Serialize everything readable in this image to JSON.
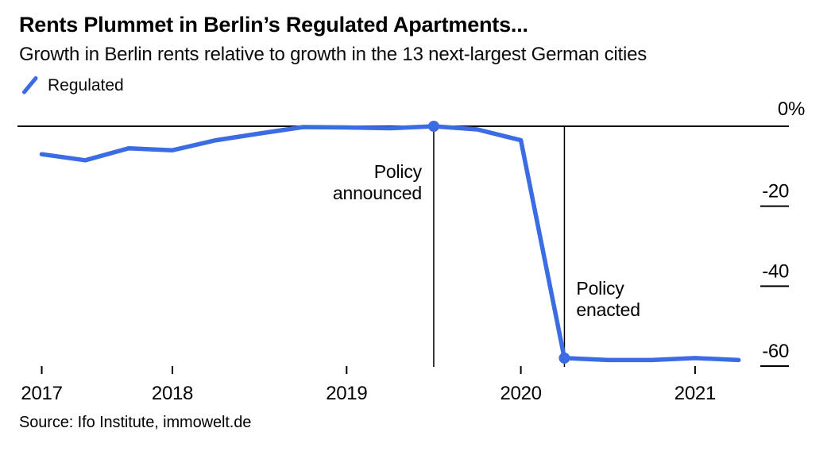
{
  "header": {
    "title": "Rents Plummet in Berlin’s Regulated Apartments...",
    "subtitle": "Growth in Berlin rents relative to growth in the 13 next-largest German cities"
  },
  "legend": {
    "items": [
      {
        "label": "Regulated",
        "color": "#3B6CE3"
      }
    ]
  },
  "footer": {
    "source": "Source: Ifo Institute, immowelt.de"
  },
  "chart_data": {
    "type": "line",
    "title": "Rents Plummet in Berlin’s Regulated Apartments...",
    "subtitle": "Growth in Berlin rents relative to growth in the 13 next-largest German cities",
    "xlabel": "",
    "ylabel": "",
    "grid": "zero-line-only",
    "legend_position": "top-left",
    "axis_color": "#000000",
    "line_color": "#3B6CE3",
    "xlim": [
      2017.25,
      2021.25
    ],
    "ylim": [
      -62,
      2
    ],
    "series": [
      {
        "name": "Regulated",
        "color": "#3B6CE3",
        "x": [
          2017.25,
          2017.5,
          2017.75,
          2018.0,
          2018.25,
          2018.5,
          2018.75,
          2019.0,
          2019.25,
          2019.5,
          2019.75,
          2020.0,
          2020.25,
          2020.5,
          2020.75,
          2021.0,
          2021.25
        ],
        "values": [
          -7,
          -8.5,
          -5.5,
          -6,
          -3.5,
          -1.8,
          -0.2,
          -0.3,
          -0.5,
          0,
          -0.8,
          -3.5,
          -58,
          -58.5,
          -58.5,
          -58,
          -58.5
        ]
      }
    ],
    "x_ticks": [
      {
        "x": 2017.25,
        "label": "2017"
      },
      {
        "x": 2018,
        "label": "2018"
      },
      {
        "x": 2019,
        "label": "2019"
      },
      {
        "x": 2020,
        "label": "2020"
      },
      {
        "x": 2021,
        "label": "2021"
      }
    ],
    "y_ticks": [
      {
        "value": 0,
        "label": "0%"
      },
      {
        "value": -20,
        "label": "-20"
      },
      {
        "value": -40,
        "label": "-40"
      },
      {
        "value": -60,
        "label": "-60"
      }
    ],
    "markers": [
      {
        "x": 2019.5,
        "value": 0
      },
      {
        "x": 2020.25,
        "value": -58
      }
    ],
    "annotations": [
      {
        "x": 2019.5,
        "label": "Policy\nannounced",
        "side": "left"
      },
      {
        "x": 2020.25,
        "label": "Policy\nenacted",
        "side": "right"
      }
    ]
  }
}
